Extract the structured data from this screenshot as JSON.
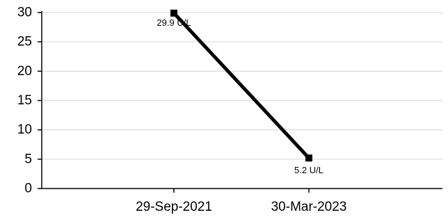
{
  "chart_data": {
    "type": "line",
    "title": "",
    "xlabel": "",
    "ylabel": "",
    "x": [
      "29-Sep-2021",
      "30-Mar-2023"
    ],
    "series": [
      {
        "values": [
          29.9,
          5.2
        ],
        "data_labels": [
          "29.9 U/L",
          "5.2 U/L"
        ],
        "color": "#000000",
        "marker": "square"
      }
    ],
    "y_ticks": [
      "0",
      "5",
      "10",
      "15",
      "20",
      "25",
      "30"
    ],
    "ylim": [
      0,
      30
    ],
    "grid": true,
    "legend": "none"
  }
}
